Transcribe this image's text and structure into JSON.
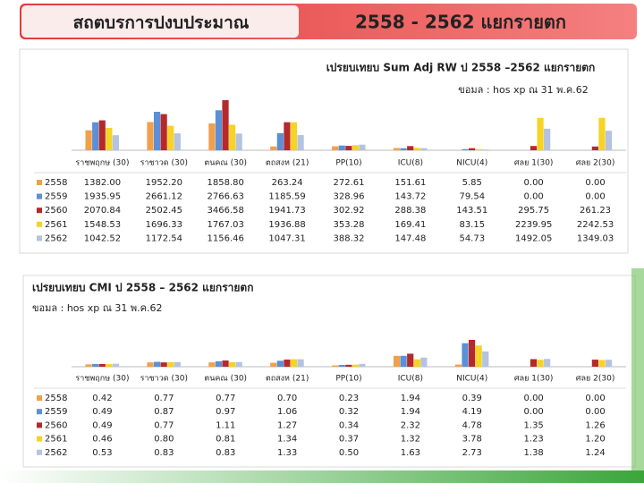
{
  "header": {
    "title_left": "สถตบรการปงบประมาณ",
    "title_right": "2558 - 2562 แยกรายตก"
  },
  "chart_data": [
    {
      "type": "bar",
      "title": "เปรยบเทยบ Sum Adj RW ป 2558 –2562 แยกรายตก",
      "subtitle": "ขอมล : hos xp ณ 31 พ.ค.62",
      "categories": [
        "ราชพฤกษ (30)",
        "ราชาวด (30)",
        "ตนคณ (30)",
        "ตถสงห (21)",
        "PP(10)",
        "ICU(8)",
        "NICU(4)",
        "ศลย 1(30)",
        "ศลย 2(30)"
      ],
      "series": [
        {
          "name": "2558",
          "color": "#f0a04b",
          "values": [
            1382,
            1952.2,
            1858.8,
            263.24,
            272.61,
            151.61,
            5.85,
            0,
            0
          ],
          "value_labels": [
            "1382.00",
            "1952.20",
            "1858.80",
            "263.24",
            "272.61",
            "151.61",
            "5.85",
            "0.00",
            "0.00"
          ]
        },
        {
          "name": "2559",
          "color": "#5b8fd6",
          "values": [
            1935.95,
            2661.12,
            2766.63,
            1185.59,
            328.96,
            143.72,
            79.54,
            0,
            0
          ],
          "value_labels": [
            "1935.95",
            "2661.12",
            "2766.63",
            "1185.59",
            "328.96",
            "143.72",
            "79.54",
            "0.00",
            "0.00"
          ]
        },
        {
          "name": "2560",
          "color": "#b5292b",
          "values": [
            2070.84,
            2502.45,
            3466.58,
            1941.73,
            302.92,
            288.38,
            143.51,
            295.75,
            261.23
          ],
          "value_labels": [
            "2070.84",
            "2502.45",
            "3466.58",
            "1941.73",
            "302.92",
            "288.38",
            "143.51",
            "295.75",
            "261.23"
          ]
        },
        {
          "name": "2561",
          "color": "#f5d327",
          "values": [
            1548.53,
            1696.33,
            1767.03,
            1936.88,
            353.28,
            169.41,
            83.15,
            2239.95,
            2242.53
          ],
          "value_labels": [
            "1548.53",
            "1696.33",
            "1767.03",
            "1936.88",
            "353.28",
            "169.41",
            "83.15",
            "2239.95",
            "2242.53"
          ]
        },
        {
          "name": "2562",
          "color": "#b3c3e0",
          "values": [
            1042.52,
            1172.54,
            1156.46,
            1047.31,
            388.32,
            147.48,
            54.73,
            1492.05,
            1349.03
          ],
          "value_labels": [
            "1042.52",
            "1172.54",
            "1156.46",
            "1047.31",
            "388.32",
            "147.48",
            "54.73",
            "1492.05",
            "1349.03"
          ]
        }
      ]
    },
    {
      "type": "bar",
      "title": "เปรยบเทยบ CMI ป 2558 – 2562 แยกรายตก",
      "subtitle": "ขอมล : hos xp ณ 31 พ.ค.62",
      "categories": [
        "ราชพฤกษ (30)",
        "ราชาวด (30)",
        "ตนคณ (30)",
        "ตถสงห (21)",
        "PP(10)",
        "ICU(8)",
        "NICU(4)",
        "ศลย 1(30)",
        "ศลย 2(30)"
      ],
      "series": [
        {
          "name": "2558",
          "color": "#f0a04b",
          "values": [
            0.42,
            0.77,
            0.77,
            0.7,
            0.23,
            1.94,
            0.39,
            0,
            0
          ],
          "value_labels": [
            "0.42",
            "0.77",
            "0.77",
            "0.70",
            "0.23",
            "1.94",
            "0.39",
            "0.00",
            "0.00"
          ]
        },
        {
          "name": "2559",
          "color": "#5b8fd6",
          "values": [
            0.49,
            0.87,
            0.97,
            1.06,
            0.32,
            1.94,
            4.19,
            0,
            0
          ],
          "value_labels": [
            "0.49",
            "0.87",
            "0.97",
            "1.06",
            "0.32",
            "1.94",
            "4.19",
            "0.00",
            "0.00"
          ]
        },
        {
          "name": "2560",
          "color": "#b5292b",
          "values": [
            0.49,
            0.77,
            1.11,
            1.27,
            0.34,
            2.32,
            4.78,
            1.35,
            1.26
          ],
          "value_labels": [
            "0.49",
            "0.77",
            "1.11",
            "1.27",
            "0.34",
            "2.32",
            "4.78",
            "1.35",
            "1.26"
          ]
        },
        {
          "name": "2561",
          "color": "#f5d327",
          "values": [
            0.46,
            0.8,
            0.81,
            1.34,
            0.37,
            1.32,
            3.78,
            1.23,
            1.2
          ],
          "value_labels": [
            "0.46",
            "0.80",
            "0.81",
            "1.34",
            "0.37",
            "1.32",
            "3.78",
            "1.23",
            "1.20"
          ]
        },
        {
          "name": "2562",
          "color": "#b3c3e0",
          "values": [
            0.53,
            0.83,
            0.83,
            1.33,
            0.5,
            1.63,
            2.73,
            1.38,
            1.24
          ],
          "value_labels": [
            "0.53",
            "0.83",
            "0.83",
            "1.33",
            "0.50",
            "1.63",
            "2.73",
            "1.38",
            "1.24"
          ]
        }
      ]
    }
  ]
}
